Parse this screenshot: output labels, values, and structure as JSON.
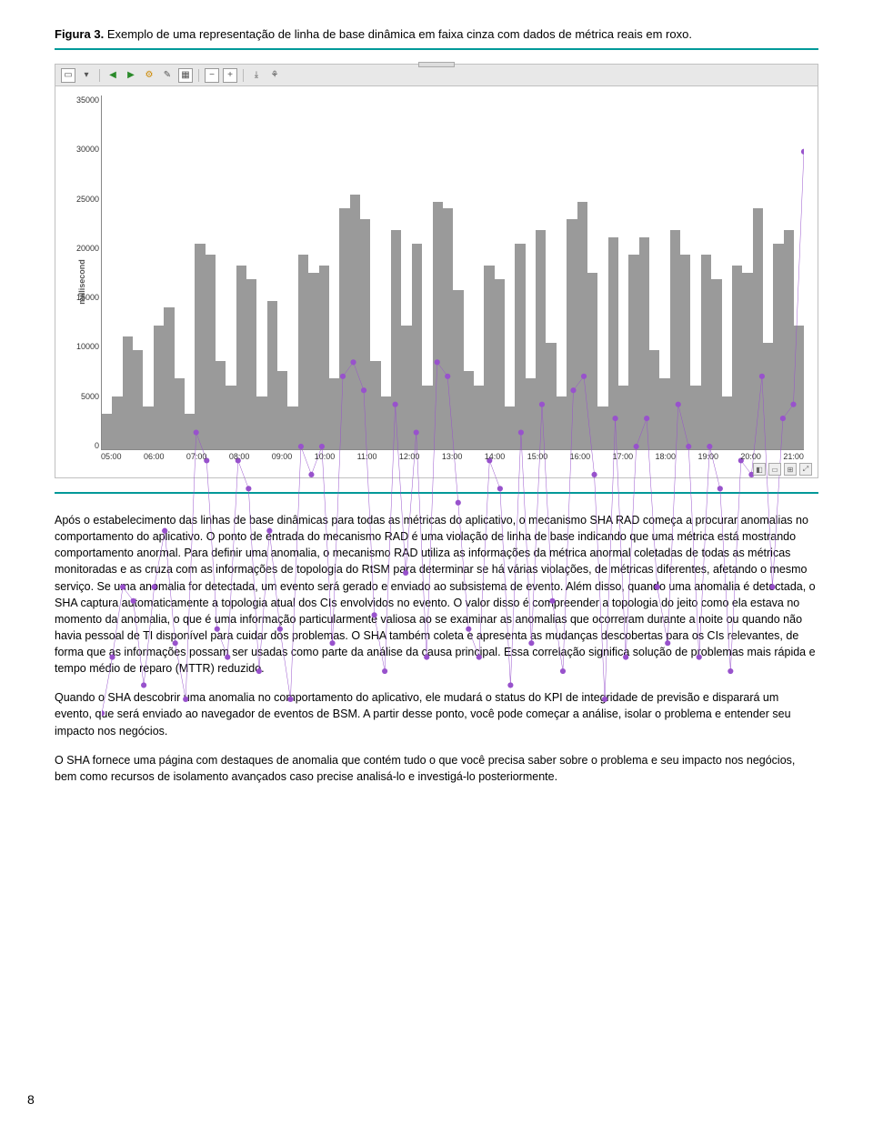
{
  "figure": {
    "label": "Figura 3.",
    "caption": "Exemplo de uma representação de linha de base dinâmica em faixa cinza com dados de métrica reais em roxo."
  },
  "chart": {
    "type": "bar-line-combo",
    "y_axis_label": "millisecond",
    "y_ticks": [
      "35000",
      "30000",
      "25000",
      "20000",
      "15000",
      "10000",
      "5000",
      "0"
    ],
    "x_ticks": [
      "05:00",
      "06:00",
      "07:00",
      "08:00",
      "09:00",
      "10:00",
      "11:00",
      "12:00",
      "13:00",
      "14:00",
      "15:00",
      "16:00",
      "17:00",
      "18:00",
      "19:00",
      "20:00",
      "21:00"
    ],
    "background_color": "#ffffff",
    "bar_color": "#9a9a9a",
    "line_color": "#9852cc",
    "grid_color": "#dddddd",
    "ylim": [
      0,
      35000
    ],
    "gray_bar_heights_pct": [
      10,
      15,
      32,
      28,
      12,
      35,
      40,
      20,
      10,
      58,
      55,
      25,
      18,
      52,
      48,
      15,
      42,
      22,
      12,
      55,
      50,
      52,
      20,
      68,
      72,
      65,
      25,
      15,
      62,
      35,
      58,
      18,
      70,
      68,
      45,
      22,
      18,
      52,
      48,
      12,
      58,
      20,
      62,
      30,
      15,
      65,
      70,
      50,
      12,
      60,
      18,
      55,
      60,
      28,
      20,
      62,
      55,
      18,
      55,
      48,
      15,
      52,
      50,
      68,
      30,
      58,
      62,
      35
    ],
    "purple_line_points_pct": [
      12,
      20,
      30,
      28,
      16,
      30,
      38,
      22,
      14,
      52,
      48,
      24,
      20,
      48,
      44,
      18,
      38,
      24,
      14,
      50,
      46,
      50,
      22,
      60,
      62,
      58,
      26,
      18,
      56,
      32,
      52,
      20,
      62,
      60,
      42,
      24,
      20,
      48,
      44,
      16,
      52,
      22,
      56,
      28,
      18,
      58,
      60,
      46,
      14,
      54,
      20,
      50,
      54,
      30,
      22,
      56,
      50,
      20,
      50,
      44,
      18,
      48,
      46,
      60,
      30,
      54,
      56,
      92
    ]
  },
  "body": {
    "p1": "Após o estabelecimento das linhas de base dinâmicas para todas as métricas do aplicativo, o mecanismo SHA RAD começa a procurar anomalias no comportamento do aplicativo. O ponto de entrada do mecanismo RAD é uma violação de linha de base indicando que uma métrica está mostrando comportamento anormal. Para definir uma anomalia, o mecanismo RAD utiliza as informações da métrica anormal coletadas de todas as métricas monitoradas e as cruza com as informações de topologia do RtSM para determinar se há várias violações, de métricas diferentes, afetando o mesmo serviço. Se uma anomalia for detectada, um evento será gerado e enviado ao subsistema de evento. Além disso, quando uma anomalia é detectada, o SHA captura automaticamente a topologia atual dos CIs envolvidos no evento. O valor disso é compreender a topologia do jeito como ela estava no momento da anomalia, o que é uma informação particularmente valiosa ao se examinar as anomalias que ocorreram durante a noite ou quando não havia pessoal de TI disponível para cuidar dos problemas. O SHA também coleta e apresenta as mudanças descobertas para os CIs relevantes, de forma que as informações possam ser usadas como parte da análise da causa principal. Essa correlação significa solução de problemas mais rápida e tempo médio de reparo (MTTR) reduzido.",
    "p2": "Quando o SHA descobrir uma anomalia no comportamento do aplicativo, ele mudará o status do KPI de integridade de previsão e disparará um evento, que será enviado ao navegador de eventos de BSM. A partir desse ponto, você pode começar a análise, isolar o problema e entender seu impacto nos negócios.",
    "p3": "O SHA fornece uma página com destaques de anomalia que contém tudo o que você precisa saber sobre o problema e seu impacto nos negócios, bem como recursos de isolamento avançados caso precise analisá-lo e investigá-lo posteriormente."
  },
  "page_number": "8"
}
